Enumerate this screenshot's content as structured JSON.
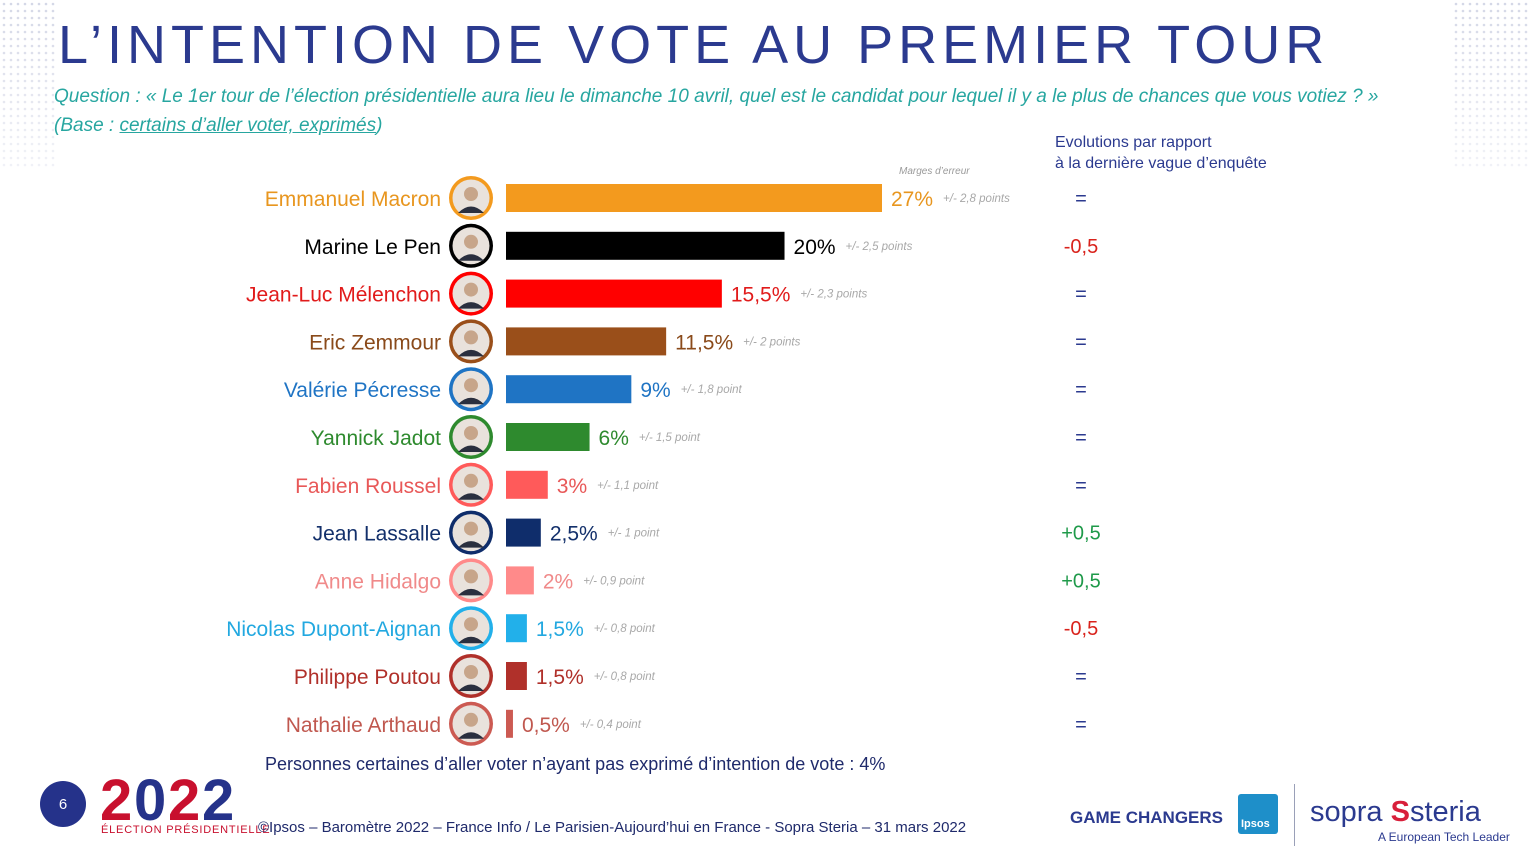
{
  "title": "L’INTENTION DE VOTE AU PREMIER TOUR",
  "question": "Question : « Le 1er tour de l’élection présidentielle aura lieu le dimanche 10 avril, quel est le candidat pour lequel il y a le plus de chances que vous votiez ? »",
  "base_prefix": "(Base : ",
  "base_link": "certains d’aller voter, exprimés",
  "base_suffix": ")",
  "evolutions_header_line1": "Evolutions par rapport",
  "evolutions_header_line2": "à la dernière vague d’enquête",
  "marges_label": "Marges d’erreur",
  "footnote": "Personnes certaines d’aller voter n’ayant pas exprimé d’intention de vote : 4%",
  "page_number": "6",
  "logo_2022": "2022",
  "logo_subtitle": "ÉLECTION PRÉSIDENTIELLE",
  "source": "©Ipsos – Baromètre 2022 – France Info / Le Parisien-Aujourd’hui en France - Sopra Steria – 31 mars 2022",
  "game_changers": "GAME CHANGERS",
  "ipsos": "Ipsos",
  "sopra_a": "sopra",
  "sopra_b": "steria",
  "tagline": "A European Tech Leader",
  "colors": {
    "title": "#2b3a8f",
    "question": "#27a6a0",
    "negative": "#d9231c",
    "positive": "#1f9a4a",
    "neutral": "#2b3a8f"
  },
  "chart_data": {
    "type": "bar",
    "orientation": "horizontal",
    "categories": [
      "Emmanuel Macron",
      "Marine Le Pen",
      "Jean-Luc Mélenchon",
      "Eric Zemmour",
      "Valérie Pécresse",
      "Yannick Jadot",
      "Fabien Roussel",
      "Jean Lassalle",
      "Anne Hidalgo",
      "Nicolas Dupont-Aignan",
      "Philippe Poutou",
      "Nathalie Arthaud"
    ],
    "values": [
      27,
      20,
      15.5,
      11.5,
      9,
      6,
      3,
      2.5,
      2,
      1.5,
      1.5,
      0.5
    ],
    "value_labels": [
      "27%",
      "20%",
      "15,5%",
      "11,5%",
      "9%",
      "6%",
      "3%",
      "2,5%",
      "2%",
      "1,5%",
      "1,5%",
      "0,5%"
    ],
    "margins": [
      "+/- 2,8 points",
      "+/- 2,5 points",
      "+/- 2,3 points",
      "+/- 2 points",
      "+/- 1,8 point",
      "+/- 1,5 point",
      "+/- 1,1 point",
      "+/- 1 point",
      "+/- 0,9 point",
      "+/- 0,8 point",
      "+/- 0,8 point",
      "+/- 0,4 point"
    ],
    "evolutions": [
      "=",
      "-0,5",
      "=",
      "=",
      "=",
      "=",
      "=",
      "+0,5",
      "+0,5",
      "-0,5",
      "=",
      "="
    ],
    "colors": [
      "#f39a1e",
      "#000000",
      "#ff0000",
      "#9a4f1a",
      "#1f74c4",
      "#2e8a2e",
      "#ff5a5a",
      "#0f2d6b",
      "#ff8a8a",
      "#22b0ea",
      "#b0302a",
      "#cc5a52"
    ],
    "label_colors": [
      "#e8961f",
      "#000000",
      "#e11b1b",
      "#8a4a1a",
      "#1f74c4",
      "#2e8a2e",
      "#e85858",
      "#13306b",
      "#f08a8a",
      "#22a8e0",
      "#b0302a",
      "#c0584f"
    ],
    "xlim": [
      0,
      27
    ]
  }
}
